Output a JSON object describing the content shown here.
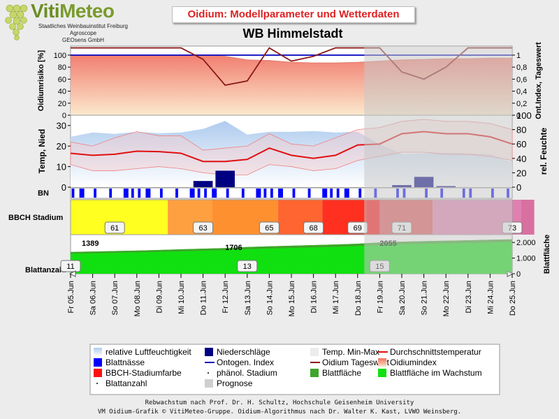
{
  "logo": {
    "brand_a": "Viti",
    "brand_b": "Meteo",
    "lines": [
      "Staatliches Weinbauinstitut Freiburg",
      "Agroscope",
      "GEOsens GmbH"
    ]
  },
  "title": "Oidium: Modellparameter und Wetterdaten",
  "station": "WB Himmelstadt",
  "colors": {
    "title": "#dd2222",
    "oidiumindex_top": "#f07060",
    "oidiumindex_bottom": "#fbe7c8",
    "ontogen": "#1010c0",
    "tageswert": "#8b1a1a",
    "humidity": "#aecbee",
    "rain": "#000080",
    "temp_mean": "#e01010",
    "temp_band": "#f8cccc",
    "blattnaesse": "#0000ff",
    "blattflaeche": "#3fa52a",
    "blattflaeche_wachstum": "#10e010",
    "prognose": "#c8c8c8"
  },
  "chart_data": [
    {
      "type": "area",
      "panel": "oidium",
      "ylabel_left": "Oidiumrisiko [%]",
      "ylabel_right": "Ont.Index, Tageswert",
      "ylim_left": [
        0,
        115
      ],
      "ylim_right": [
        0,
        1.15
      ],
      "yticks_left": [
        "0",
        "20",
        "40",
        "60",
        "80",
        "100"
      ],
      "yticks_right": [
        "0",
        "0,2",
        "0,4",
        "0,6",
        "0,8",
        "1"
      ],
      "x": [
        "Fr 05.Jun",
        "Sa 06.Jun",
        "So 07.Jun",
        "Mo 08.Jun",
        "Di 09.Jun",
        "Mi 10.Jun",
        "Do 11.Jun",
        "Fr 12.Jun",
        "Sa 13.Jun",
        "So 14.Jun",
        "Mo 15.Jun",
        "Di 16.Jun",
        "Mi 17.Jun",
        "Do 18.Jun",
        "Fr 19.Jun",
        "Sa 20.Jun",
        "So 21.Jun",
        "Mo 22.Jun",
        "Di 23.Jun",
        "Mi 24.Jun",
        "Do 25.Jun"
      ],
      "series": [
        {
          "name": "Oidiumindex",
          "values": [
            100,
            100,
            100,
            100,
            100,
            100,
            100,
            98,
            92,
            91,
            88,
            87,
            87,
            88,
            90,
            92,
            93,
            94,
            94,
            95,
            95
          ]
        },
        {
          "name": "Ontogen. Index",
          "values": [
            1,
            1,
            1,
            1,
            1,
            1,
            1,
            1,
            1,
            1,
            1,
            1,
            1,
            1,
            1,
            1,
            1,
            1,
            1,
            1,
            1
          ]
        },
        {
          "name": "Oidium Tageswert",
          "values": [
            1.12,
            1.12,
            1.12,
            1.12,
            1.12,
            1.12,
            0.93,
            0.5,
            0.57,
            1.12,
            0.9,
            0.98,
            1.12,
            1.12,
            1.12,
            0.72,
            0.6,
            0.8,
            1.12,
            1.12,
            1.12
          ]
        }
      ]
    },
    {
      "type": "line",
      "panel": "wetter",
      "ylabel_left": "Temp, Nied",
      "ylabel_right": "rel. Feuchte",
      "ylim_left": [
        0,
        35
      ],
      "ylim_right": [
        0,
        100
      ],
      "yticks_left": [
        "0",
        "10",
        "20",
        "30"
      ],
      "yticks_right": [
        "0",
        "20",
        "40",
        "60",
        "80",
        "100"
      ],
      "x": [
        "Fr 05.Jun",
        "Sa 06.Jun",
        "So 07.Jun",
        "Mo 08.Jun",
        "Di 09.Jun",
        "Mi 10.Jun",
        "Do 11.Jun",
        "Fr 12.Jun",
        "Sa 13.Jun",
        "So 14.Jun",
        "Mo 15.Jun",
        "Di 16.Jun",
        "Mi 17.Jun",
        "Do 18.Jun",
        "Fr 19.Jun",
        "Sa 20.Jun",
        "So 21.Jun",
        "Mo 22.Jun",
        "Di 23.Jun",
        "Mi 24.Jun",
        "Do 25.Jun"
      ],
      "series": [
        {
          "name": "relative Luftfeuchtigkeit",
          "values": [
            70,
            76,
            74,
            77,
            75,
            76,
            81,
            92,
            73,
            77,
            77,
            78,
            76,
            77,
            60,
            46,
            47,
            48,
            47,
            46,
            34
          ]
        },
        {
          "name": "Durchschnittstemperatur",
          "values": [
            16.5,
            15.5,
            16,
            17.5,
            17.3,
            16.5,
            12.5,
            12.5,
            13.5,
            19,
            15.5,
            14,
            15.5,
            20.5,
            21,
            26,
            27,
            26,
            26,
            24.5,
            21
          ]
        },
        {
          "name": "Temp. Min",
          "values": [
            11,
            8,
            8,
            9,
            10,
            9,
            7,
            6,
            6,
            11,
            10,
            8,
            9,
            13,
            15,
            17,
            17,
            16,
            16,
            15,
            13
          ]
        },
        {
          "name": "Temp. Max",
          "values": [
            22,
            20,
            24,
            27,
            25,
            25,
            18,
            19,
            20,
            26,
            21,
            20,
            24,
            28,
            29,
            32,
            33,
            32,
            32,
            31,
            28
          ]
        },
        {
          "name": "Niederschläge",
          "values": [
            0,
            0,
            0,
            0,
            0,
            0,
            3,
            8,
            0,
            0,
            0,
            0,
            0,
            0,
            0,
            1,
            5,
            0.5,
            0,
            0,
            0
          ]
        }
      ]
    },
    {
      "type": "bar",
      "panel": "bbch",
      "label": "BBCH Stadium",
      "stages": [
        "61",
        "63",
        "65",
        "68",
        "69",
        "71",
        "73"
      ],
      "stage_days": [
        2,
        6,
        9,
        11,
        13,
        15,
        20
      ]
    },
    {
      "type": "area",
      "panel": "blatt",
      "ylabel_left": "Blattanzahl",
      "ylabel_right": "Blattfläche",
      "ylim_right": [
        0,
        2500
      ],
      "yticks_right": [
        "0",
        "1.000",
        "2.000"
      ],
      "area_labels": [
        "1389",
        "1706",
        "2055"
      ],
      "area_label_days": [
        0,
        7,
        14
      ],
      "leaf_count_boxes": [
        "11",
        "13",
        "15"
      ],
      "leaf_count_days": [
        0,
        8,
        14
      ]
    }
  ],
  "legend": [
    {
      "label": "relative Luftfeuchtigkeit",
      "sym": "grad-blue"
    },
    {
      "label": "Niederschläge",
      "sym": "navy"
    },
    {
      "label": "Temp. Min-Max",
      "sym": "lightgray"
    },
    {
      "label": "Durchschnittstemperatur",
      "sym": "redline"
    },
    {
      "label": "Blattnässe",
      "sym": "blue"
    },
    {
      "label": "Ontogen. Index",
      "sym": "blueline"
    },
    {
      "label": "Oidium Tageswert",
      "sym": "darkredline"
    },
    {
      "label": "Oidiumindex",
      "sym": "grad-orange"
    },
    {
      "label": "BBCH-Stadiumfarbe",
      "sym": "red"
    },
    {
      "label": "phänol. Stadium",
      "sym": "dot"
    },
    {
      "label": "Blattfläche",
      "sym": "green"
    },
    {
      "label": "Blattfläche im Wachstum",
      "sym": "lightgreen"
    },
    {
      "label": "Blattanzahl",
      "sym": "dot"
    },
    {
      "label": "Prognose",
      "sym": "gray"
    }
  ],
  "footer": [
    "Rebwachstum nach Prof. Dr. H. Schultz, Hochschule Geisenheim University",
    "VM Oidium-Grafik © VitiMeteo-Gruppe. Oidium-Algorithmus nach Dr. Walter K. Kast, LVWO Weinsberg."
  ],
  "bn_label": "BN"
}
